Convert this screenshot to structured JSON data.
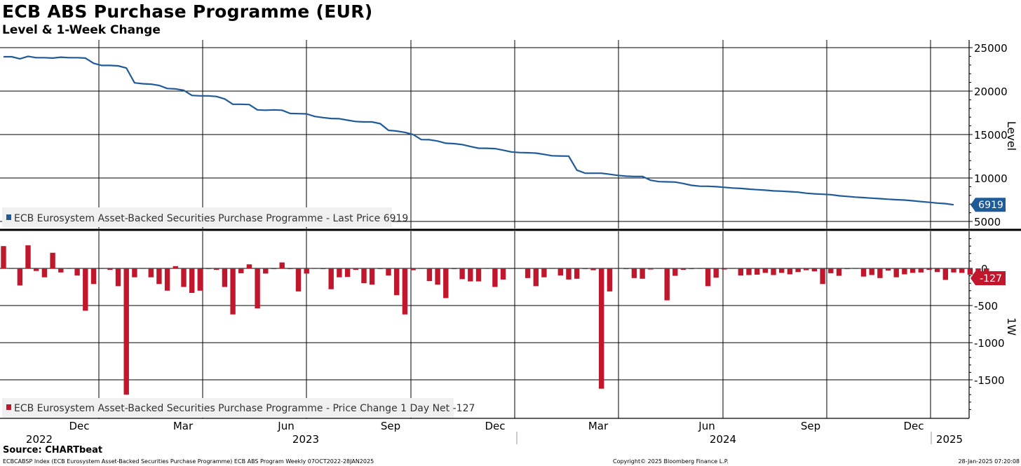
{
  "header": {
    "title": "ECB ABS Purchase Programme (EUR)",
    "subtitle": "Level & 1-Week Change"
  },
  "footer": {
    "source": "Source: CHARTbeat",
    "description": "ECBCABSP Index (ECB Eurosystem Asset-Backed Securities Purchase Programme) ECB ABS Program  Weekly 07OCT2022-28JAN2025",
    "copyright": "Copyright© 2025 Bloomberg Finance L.P.",
    "timestamp": "28-Jan-2025 07:20:08"
  },
  "chart_data": [
    {
      "type": "line",
      "ylabel": "Level",
      "ylim": [
        4000,
        26000
      ],
      "yticks": [
        5000,
        10000,
        15000,
        20000,
        25000
      ],
      "grid": true,
      "legend": "ECB Eurosystem Asset-Backed Securities Purchase Programme - Last Price 6919",
      "legend_placement": "bottom-left",
      "color": "#1f5b99",
      "last_value_label": "6919",
      "series": [
        {
          "values": [
            23950,
            23950,
            23720,
            24000,
            23850,
            23850,
            23800,
            23900,
            23850,
            23850,
            23800,
            23200,
            22950,
            22950,
            22900,
            22650,
            20950,
            20850,
            20800,
            20650,
            20300,
            20250,
            20100,
            19500,
            19450,
            19450,
            19380,
            19100,
            18480,
            18480,
            18450,
            17840,
            17800,
            17840,
            17800,
            17430,
            17400,
            17380,
            17080,
            16950,
            16850,
            16820,
            16650,
            16500,
            16450,
            16450,
            16250,
            15480,
            15400,
            15250,
            15000,
            14420,
            14400,
            14250,
            14000,
            13950,
            13850,
            13620,
            13430,
            13420,
            13380,
            13200,
            13000,
            12930,
            12900,
            12860,
            12720,
            12560,
            12530,
            12520,
            10900,
            10560,
            10550,
            10550,
            10430,
            10300,
            10210,
            10180,
            10180,
            9740,
            9580,
            9560,
            9530,
            9360,
            9150,
            9060,
            9050,
            9000,
            8930,
            8850,
            8800,
            8720,
            8650,
            8600,
            8520,
            8480,
            8430,
            8370,
            8250,
            8180,
            8130,
            8080,
            7950,
            7880,
            7800,
            7740,
            7680,
            7620,
            7560,
            7500,
            7460,
            7380,
            7280,
            7200,
            7110,
            7050,
            6919
          ]
        }
      ]
    },
    {
      "type": "bar",
      "ylabel": "1W",
      "ylim": [
        -1950,
        450
      ],
      "yticks": [
        -1500,
        -1000,
        -500,
        0
      ],
      "grid": true,
      "legend": "ECB Eurosystem Asset-Backed Securities Purchase Programme - Price Change 1 Day Net -127",
      "legend_placement": "bottom-left",
      "color": "#c0172c",
      "last_value_label": "-127",
      "series": [
        {
          "values": [
            300,
            -5,
            -230,
            310,
            -35,
            -120,
            210,
            -55,
            0,
            -95,
            -570,
            -210,
            -5,
            -20,
            -240,
            -1700,
            -120,
            -5,
            -120,
            -210,
            -300,
            30,
            -250,
            -330,
            -300,
            -10,
            -20,
            -250,
            -620,
            -65,
            55,
            -540,
            -70,
            -10,
            80,
            -10,
            -310,
            -70,
            -5,
            -10,
            -280,
            -120,
            -115,
            -20,
            -200,
            -220,
            -10,
            -95,
            -360,
            -620,
            -25,
            -5,
            -170,
            -220,
            -400,
            -10,
            -145,
            -175,
            -175,
            -5,
            -250,
            -150,
            0,
            0,
            -130,
            -240,
            -120,
            -5,
            -95,
            -150,
            -140,
            -10,
            -25,
            -1620,
            -310,
            0,
            -10,
            -130,
            -140,
            -15,
            -5,
            -430,
            -100,
            -20,
            -10,
            -5,
            -240,
            -125,
            -15,
            -5,
            -95,
            -90,
            -85,
            -60,
            -90,
            -60,
            -80,
            -50,
            -25,
            -40,
            -210,
            -65,
            -100,
            -10,
            -5,
            -110,
            -90,
            -130,
            -30,
            -120,
            -80,
            -60,
            -55,
            -20,
            -50,
            -155,
            -55,
            -60,
            -85,
            -70,
            -127
          ]
        }
      ]
    }
  ],
  "xaxis": {
    "months": [
      {
        "label": "Dec",
        "x": 113
      },
      {
        "label": "Mar",
        "x": 261
      },
      {
        "label": "Jun",
        "x": 408
      },
      {
        "label": "Sep",
        "x": 557
      },
      {
        "label": "Dec",
        "x": 706
      },
      {
        "label": "Mar",
        "x": 853
      },
      {
        "label": "Jun",
        "x": 1008
      },
      {
        "label": "Sep",
        "x": 1156
      },
      {
        "label": "Dec",
        "x": 1303
      }
    ],
    "years": [
      {
        "label": "2022",
        "x": 56
      },
      {
        "label": "2023",
        "x": 436
      },
      {
        "label": "2024",
        "x": 1031
      },
      {
        "label": "2025",
        "x": 1354
      }
    ]
  }
}
